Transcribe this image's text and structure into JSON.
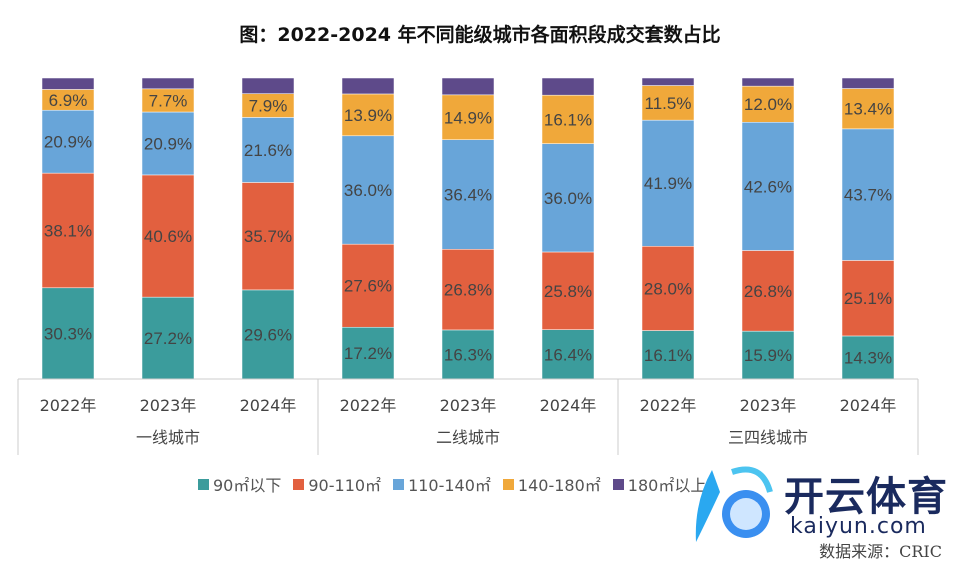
{
  "chart_data": {
    "type": "bar",
    "stacked": true,
    "title": "图：2022-2024 年不同能级城市各面积段成交套数占比",
    "groups": [
      {
        "label": "一线城市",
        "categories": [
          "2022年",
          "2023年",
          "2024年"
        ]
      },
      {
        "label": "二线城市",
        "categories": [
          "2022年",
          "2023年",
          "2024年"
        ]
      },
      {
        "label": "三四线城市",
        "categories": [
          "2022年",
          "2023年",
          "2024年"
        ]
      }
    ],
    "series": [
      {
        "name": "90㎡以下",
        "color": "#3b9c9c",
        "values": [
          30.3,
          27.2,
          29.6,
          17.2,
          16.3,
          16.4,
          16.1,
          15.9,
          14.3
        ],
        "labels": [
          "30.3%",
          "27.2%",
          "29.6%",
          "17.2%",
          "16.3%",
          "16.4%",
          "16.1%",
          "15.9%",
          "14.3%"
        ]
      },
      {
        "name": "90-110㎡",
        "color": "#e2603f",
        "values": [
          38.1,
          40.6,
          35.7,
          27.6,
          26.8,
          25.8,
          28.0,
          26.8,
          25.1
        ],
        "labels": [
          "38.1%",
          "40.6%",
          "35.7%",
          "27.6%",
          "26.8%",
          "25.8%",
          "28.0%",
          "26.8%",
          "25.1%"
        ]
      },
      {
        "name": "110-140㎡",
        "color": "#68a5d9",
        "values": [
          20.9,
          20.9,
          21.6,
          36.0,
          36.4,
          36.0,
          41.9,
          42.6,
          43.7
        ],
        "labels": [
          "20.9%",
          "20.9%",
          "21.6%",
          "36.0%",
          "36.4%",
          "36.0%",
          "41.9%",
          "42.6%",
          "43.7%"
        ]
      },
      {
        "name": "140-180㎡",
        "color": "#f0a83a",
        "values": [
          6.9,
          7.7,
          7.9,
          13.9,
          14.9,
          16.1,
          11.5,
          12.0,
          13.4
        ],
        "labels": [
          "6.9%",
          "7.7%",
          "7.9%",
          "13.9%",
          "14.9%",
          "16.1%",
          "11.5%",
          "12.0%",
          "13.4%"
        ]
      },
      {
        "name": "180㎡以上",
        "color": "#5e4a8a",
        "values": [
          3.8,
          3.6,
          5.2,
          5.3,
          5.6,
          5.7,
          2.5,
          2.7,
          3.5
        ],
        "labels": []
      }
    ],
    "ylim": [
      0,
      100
    ],
    "legend": "bottom"
  },
  "source": "数据来源：CRIC",
  "watermark": {
    "cn": "开云体育",
    "en": "kaiyun.com"
  }
}
